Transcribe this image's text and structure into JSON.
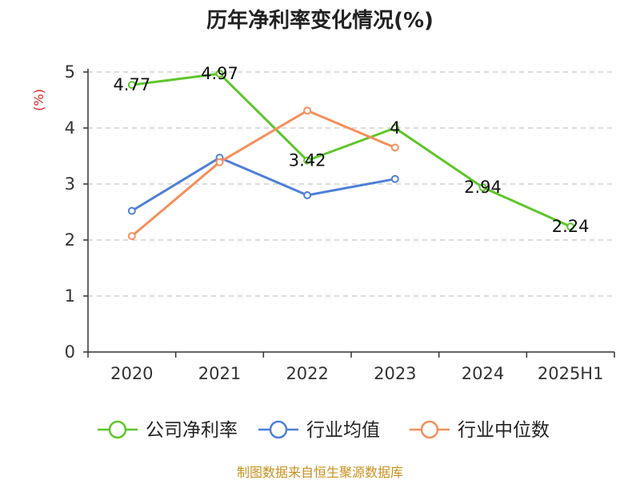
{
  "chart_data": {
    "type": "line",
    "title": "历年净利率变化情况(%)",
    "ylabel": "(%)",
    "xlabel": "",
    "categories": [
      "2020",
      "2021",
      "2022",
      "2023",
      "2024",
      "2025H1"
    ],
    "ylim": [
      0,
      5
    ],
    "yticks": [
      "0",
      "1",
      "2",
      "3",
      "4",
      "5"
    ],
    "grid": true,
    "legend_position": "bottom",
    "series": [
      {
        "name": "公司净利率",
        "color": "#5ec62b",
        "values": [
          4.77,
          4.97,
          3.42,
          4,
          2.94,
          2.24
        ],
        "labels": [
          "4.77",
          "4.97",
          "3.42",
          "4",
          "2.94",
          "2.24"
        ]
      },
      {
        "name": "行业均值",
        "color": "#4f7fd8",
        "values": [
          2.52,
          3.47,
          2.8,
          3.09,
          null,
          null
        ]
      },
      {
        "name": "行业中位数",
        "color": "#f58f5c",
        "values": [
          2.07,
          3.39,
          4.31,
          3.65,
          null,
          null
        ]
      }
    ]
  },
  "footer": {
    "source": "制图数据来自恒生聚源数据库"
  }
}
